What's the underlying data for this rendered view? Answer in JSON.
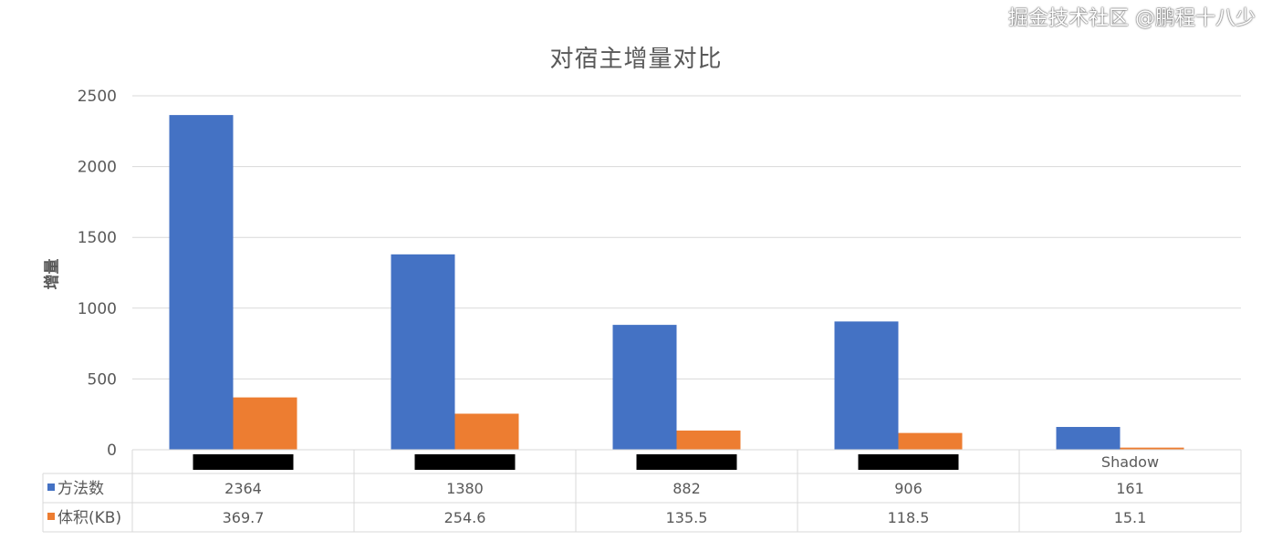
{
  "chart_data": {
    "type": "bar",
    "title": "对宿主增量对比",
    "xlabel": "",
    "ylabel": "增量",
    "ylim": [
      0,
      2500
    ],
    "yticks": [
      0,
      500,
      1000,
      1500,
      2000,
      2500
    ],
    "grid": true,
    "legend": "data-table",
    "categories": [
      "",
      "",
      "",
      "",
      "Shadow"
    ],
    "categories_redacted": [
      true,
      true,
      true,
      true,
      false
    ],
    "series": [
      {
        "name": "方法数",
        "color": "#4472C4",
        "values": [
          2364,
          1380,
          882,
          906,
          161
        ],
        "labels": [
          "2364",
          "1380",
          "882",
          "906",
          "161"
        ]
      },
      {
        "name": "体积(KB)",
        "color": "#ED7D31",
        "values": [
          369.7,
          254.6,
          135.5,
          118.5,
          15.1
        ],
        "labels": [
          "369.7",
          "254.6",
          "135.5",
          "118.5",
          "15.1"
        ]
      }
    ]
  },
  "watermark": "掘金技术社区 @鹏程十八少"
}
